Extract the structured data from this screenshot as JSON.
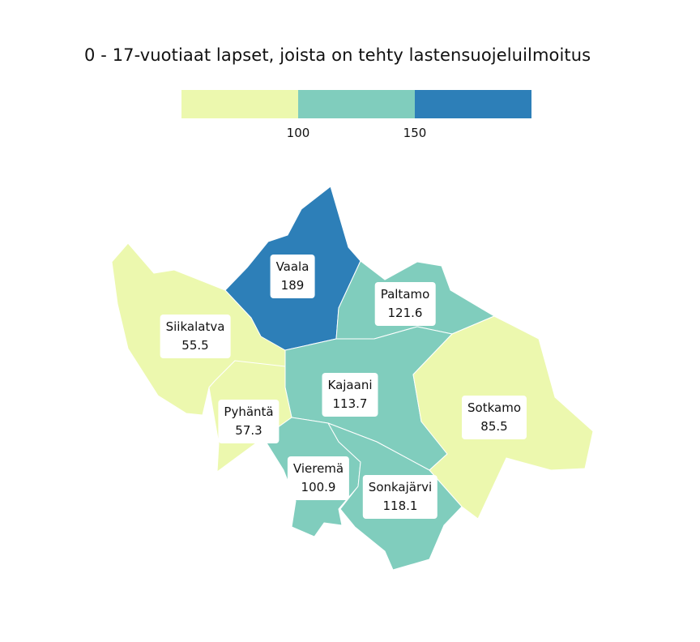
{
  "title": "0 - 17-vuotiaat lapset, joista on tehty lastensuojeluilmoitus",
  "legend": {
    "colors": [
      "#ecf8ae",
      "#80cdbd",
      "#2d7fb8"
    ],
    "ticks": [
      "100",
      "150"
    ]
  },
  "colors": {
    "low": "#ecf8ae",
    "mid": "#80cdbd",
    "high": "#2d7fb8",
    "border": "#ffffff"
  },
  "regions": [
    {
      "id": "vaala",
      "name": "Vaala",
      "value": "189",
      "class": "high"
    },
    {
      "id": "paltamo",
      "name": "Paltamo",
      "value": "121.6",
      "class": "mid"
    },
    {
      "id": "siikalatva",
      "name": "Siikalatva",
      "value": "55.5",
      "class": "low"
    },
    {
      "id": "kajaani",
      "name": "Kajaani",
      "value": "113.7",
      "class": "mid"
    },
    {
      "id": "pyhanta",
      "name": "Pyhäntä",
      "value": "57.3",
      "class": "low"
    },
    {
      "id": "sotkamo",
      "name": "Sotkamo",
      "value": "85.5",
      "class": "low"
    },
    {
      "id": "vierema",
      "name": "Vieremä",
      "value": "100.9",
      "class": "mid"
    },
    {
      "id": "sonkajarvi",
      "name": "Sonkajärvi",
      "value": "118.1",
      "class": "mid"
    }
  ]
}
